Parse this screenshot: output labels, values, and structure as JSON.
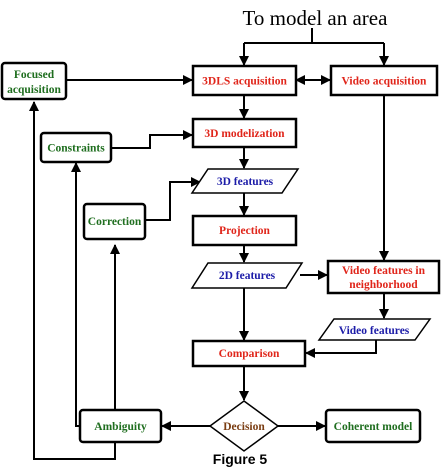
{
  "title": "To model an area",
  "figure_label": "Figure 5",
  "colors": {
    "red": "#e0251a",
    "green": "#1f6e1f",
    "blue": "#1c1ca8",
    "brown": "#7a3d12"
  },
  "nodes": {
    "focused_acquisition": [
      "Focused",
      "acquisition"
    ],
    "dls_acquisition": "3DLS acquisition",
    "video_acquisition": "Video acquisition",
    "constraints": "Constraints",
    "modelization": "3D modelization",
    "features_3d": "3D features",
    "correction": "Correction",
    "projection": "Projection",
    "features_2d": "2D features",
    "video_neighborhood": [
      "Video features in",
      "neighborhood"
    ],
    "video_features": "Video features",
    "comparison": "Comparison",
    "ambiguity": "Ambiguity",
    "decision": "Decision",
    "coherent_model": "Coherent model"
  }
}
